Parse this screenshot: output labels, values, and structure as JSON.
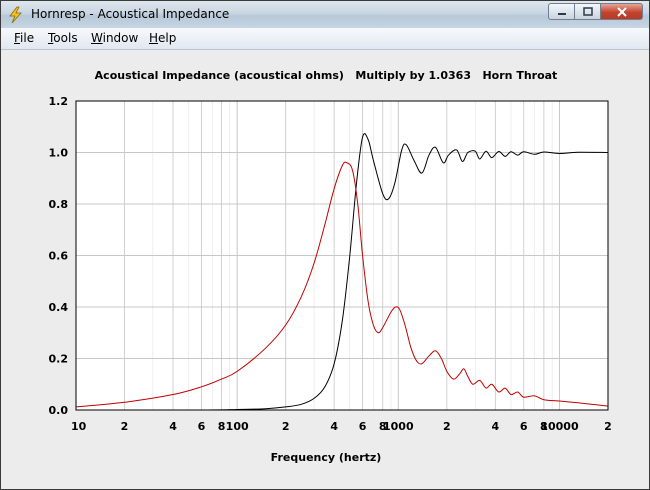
{
  "window": {
    "title": "Hornresp - Acoustical Impedance",
    "app_icon": "lightning-bolt-icon"
  },
  "menu": {
    "items": [
      {
        "accel": "F",
        "rest": "ile"
      },
      {
        "accel": "T",
        "rest": "ools"
      },
      {
        "accel": "W",
        "rest": "indow"
      },
      {
        "accel": "H",
        "rest": "elp"
      }
    ]
  },
  "colors": {
    "real_curve": "#000000",
    "imag_curve": "#c00000",
    "grid": "#c8c8c8",
    "plot_bg": "#ffffff"
  },
  "chart_data": {
    "type": "line",
    "title": "Acoustical Impedance (acoustical ohms)   Multiply by 1.0363   Horn Throat",
    "xlabel": "Frequency (hertz)",
    "ylabel": "",
    "x_scale": "log",
    "xlim": [
      10,
      20000
    ],
    "ylim": [
      0,
      1.2
    ],
    "grid": true,
    "x_tick_labels": [
      "10",
      "2",
      "4",
      "6",
      "8",
      "100",
      "2",
      "4",
      "6",
      "8",
      "1000",
      "2",
      "4",
      "6",
      "8",
      "10000",
      "2"
    ],
    "y_tick_labels": [
      "0.0",
      "0.2",
      "0.4",
      "0.6",
      "0.8",
      "1.0",
      "1.2"
    ],
    "series": [
      {
        "color": "#000000",
        "points": [
          [
            10,
            0
          ],
          [
            60,
            0
          ],
          [
            100,
            0.002
          ],
          [
            150,
            0.005
          ],
          [
            200,
            0.012
          ],
          [
            250,
            0.022
          ],
          [
            300,
            0.045
          ],
          [
            350,
            0.09
          ],
          [
            400,
            0.18
          ],
          [
            450,
            0.35
          ],
          [
            500,
            0.6
          ],
          [
            550,
            0.88
          ],
          [
            600,
            1.06
          ],
          [
            650,
            1.05
          ],
          [
            700,
            0.97
          ],
          [
            800,
            0.84
          ],
          [
            870,
            0.82
          ],
          [
            950,
            0.88
          ],
          [
            1050,
            1.01
          ],
          [
            1120,
            1.03
          ],
          [
            1250,
            0.97
          ],
          [
            1400,
            0.92
          ],
          [
            1550,
            0.99
          ],
          [
            1700,
            1.02
          ],
          [
            1900,
            0.96
          ],
          [
            2050,
            0.99
          ],
          [
            2300,
            1.01
          ],
          [
            2500,
            0.965
          ],
          [
            2700,
            1.0
          ],
          [
            3000,
            1.005
          ],
          [
            3200,
            0.975
          ],
          [
            3500,
            1.005
          ],
          [
            3800,
            0.98
          ],
          [
            4200,
            1.004
          ],
          [
            4600,
            0.985
          ],
          [
            5000,
            1.003
          ],
          [
            5500,
            0.99
          ],
          [
            6000,
            1.003
          ],
          [
            7000,
            0.993
          ],
          [
            8000,
            1.002
          ],
          [
            10000,
            0.996
          ],
          [
            13000,
            1.001
          ],
          [
            20000,
            1.0
          ]
        ]
      },
      {
        "color": "#c00000",
        "points": [
          [
            10,
            0.012
          ],
          [
            20,
            0.03
          ],
          [
            40,
            0.06
          ],
          [
            60,
            0.09
          ],
          [
            80,
            0.12
          ],
          [
            100,
            0.15
          ],
          [
            150,
            0.24
          ],
          [
            200,
            0.33
          ],
          [
            250,
            0.44
          ],
          [
            300,
            0.57
          ],
          [
            350,
            0.72
          ],
          [
            400,
            0.86
          ],
          [
            450,
            0.95
          ],
          [
            480,
            0.96
          ],
          [
            520,
            0.93
          ],
          [
            560,
            0.8
          ],
          [
            600,
            0.6
          ],
          [
            650,
            0.42
          ],
          [
            700,
            0.33
          ],
          [
            750,
            0.3
          ],
          [
            800,
            0.32
          ],
          [
            900,
            0.38
          ],
          [
            960,
            0.4
          ],
          [
            1020,
            0.39
          ],
          [
            1100,
            0.33
          ],
          [
            1200,
            0.24
          ],
          [
            1300,
            0.19
          ],
          [
            1400,
            0.18
          ],
          [
            1550,
            0.21
          ],
          [
            1700,
            0.23
          ],
          [
            1850,
            0.2
          ],
          [
            2000,
            0.15
          ],
          [
            2200,
            0.12
          ],
          [
            2400,
            0.14
          ],
          [
            2550,
            0.16
          ],
          [
            2700,
            0.13
          ],
          [
            2900,
            0.1
          ],
          [
            3200,
            0.115
          ],
          [
            3500,
            0.085
          ],
          [
            3800,
            0.1
          ],
          [
            4200,
            0.07
          ],
          [
            4600,
            0.085
          ],
          [
            5000,
            0.06
          ],
          [
            5500,
            0.07
          ],
          [
            6000,
            0.05
          ],
          [
            7000,
            0.055
          ],
          [
            8000,
            0.04
          ],
          [
            10000,
            0.035
          ],
          [
            13000,
            0.028
          ],
          [
            16000,
            0.022
          ],
          [
            20000,
            0.015
          ]
        ]
      }
    ]
  }
}
